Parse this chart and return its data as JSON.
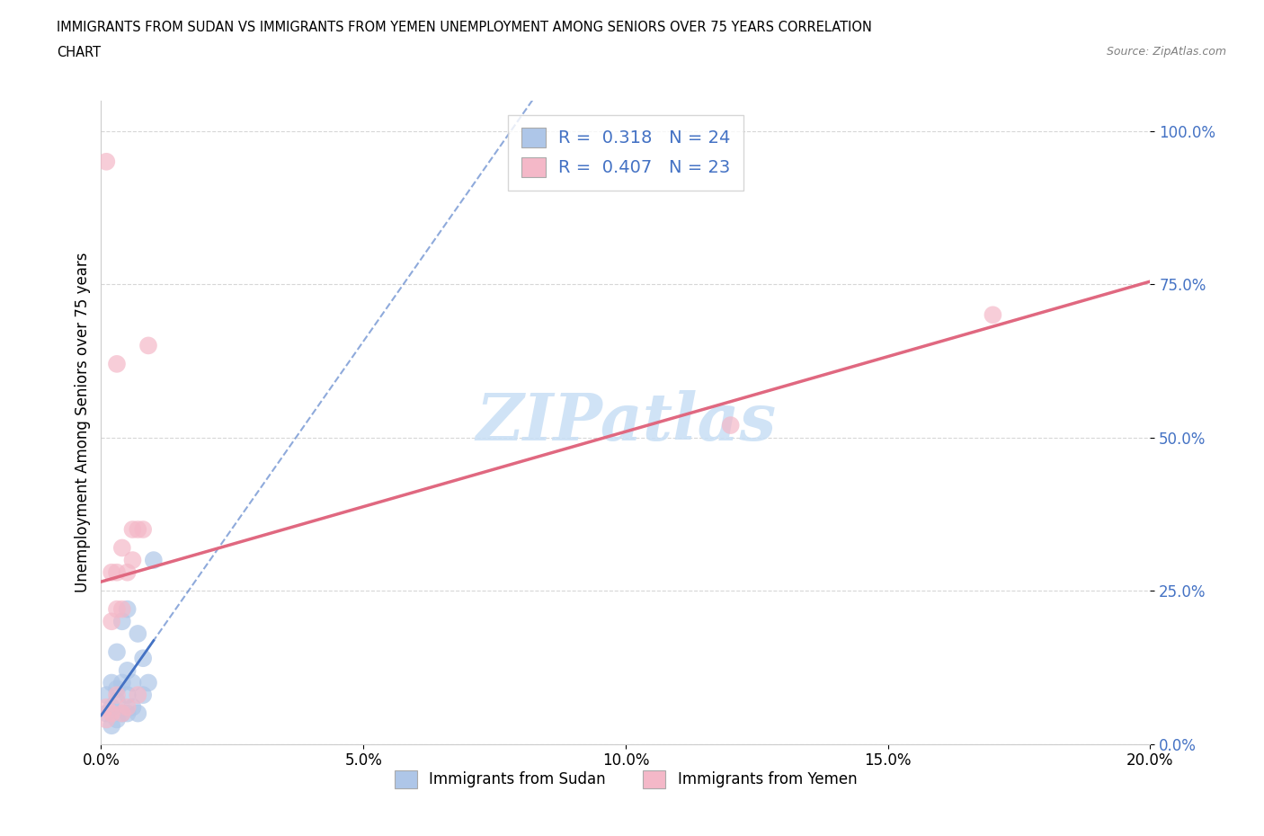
{
  "title_line1": "IMMIGRANTS FROM SUDAN VS IMMIGRANTS FROM YEMEN UNEMPLOYMENT AMONG SENIORS OVER 75 YEARS CORRELATION",
  "title_line2": "CHART",
  "source": "Source: ZipAtlas.com",
  "xlabel_label": "Immigrants from Sudan",
  "ylabel_label": "Unemployment Among Seniors over 75 years",
  "xlim": [
    0.0,
    0.2
  ],
  "ylim": [
    0.0,
    1.05
  ],
  "x_ticks": [
    0.0,
    0.05,
    0.1,
    0.15,
    0.2
  ],
  "x_tick_labels": [
    "0.0%",
    "5.0%",
    "10.0%",
    "15.0%",
    "20.0%"
  ],
  "y_ticks": [
    0.0,
    0.25,
    0.5,
    0.75,
    1.0
  ],
  "y_tick_labels": [
    "0.0%",
    "25.0%",
    "50.0%",
    "75.0%",
    "100.0%"
  ],
  "sudan_color": "#aec6e8",
  "sudan_line_color": "#4472c4",
  "yemen_color": "#f4b8c8",
  "yemen_line_color": "#e06880",
  "sudan_R": 0.318,
  "sudan_N": 24,
  "yemen_R": 0.407,
  "yemen_N": 23,
  "legend_text_color": "#4472c4",
  "watermark_text": "ZIPatlas",
  "watermark_color": "#c8dff5",
  "sudan_x": [
    0.001,
    0.001,
    0.002,
    0.002,
    0.002,
    0.003,
    0.003,
    0.003,
    0.003,
    0.004,
    0.004,
    0.004,
    0.005,
    0.005,
    0.005,
    0.005,
    0.006,
    0.006,
    0.007,
    0.007,
    0.008,
    0.008,
    0.009,
    0.01
  ],
  "sudan_y": [
    0.05,
    0.08,
    0.03,
    0.06,
    0.1,
    0.04,
    0.07,
    0.09,
    0.15,
    0.05,
    0.1,
    0.2,
    0.05,
    0.08,
    0.12,
    0.22,
    0.06,
    0.1,
    0.05,
    0.18,
    0.08,
    0.14,
    0.1,
    0.3
  ],
  "yemen_x": [
    0.001,
    0.001,
    0.001,
    0.002,
    0.002,
    0.002,
    0.003,
    0.003,
    0.003,
    0.003,
    0.004,
    0.004,
    0.004,
    0.005,
    0.005,
    0.006,
    0.006,
    0.007,
    0.007,
    0.008,
    0.009,
    0.12,
    0.17
  ],
  "yemen_y": [
    0.04,
    0.06,
    0.95,
    0.05,
    0.2,
    0.28,
    0.08,
    0.22,
    0.28,
    0.62,
    0.05,
    0.22,
    0.32,
    0.06,
    0.28,
    0.3,
    0.35,
    0.08,
    0.35,
    0.35,
    0.65,
    0.52,
    0.7
  ]
}
